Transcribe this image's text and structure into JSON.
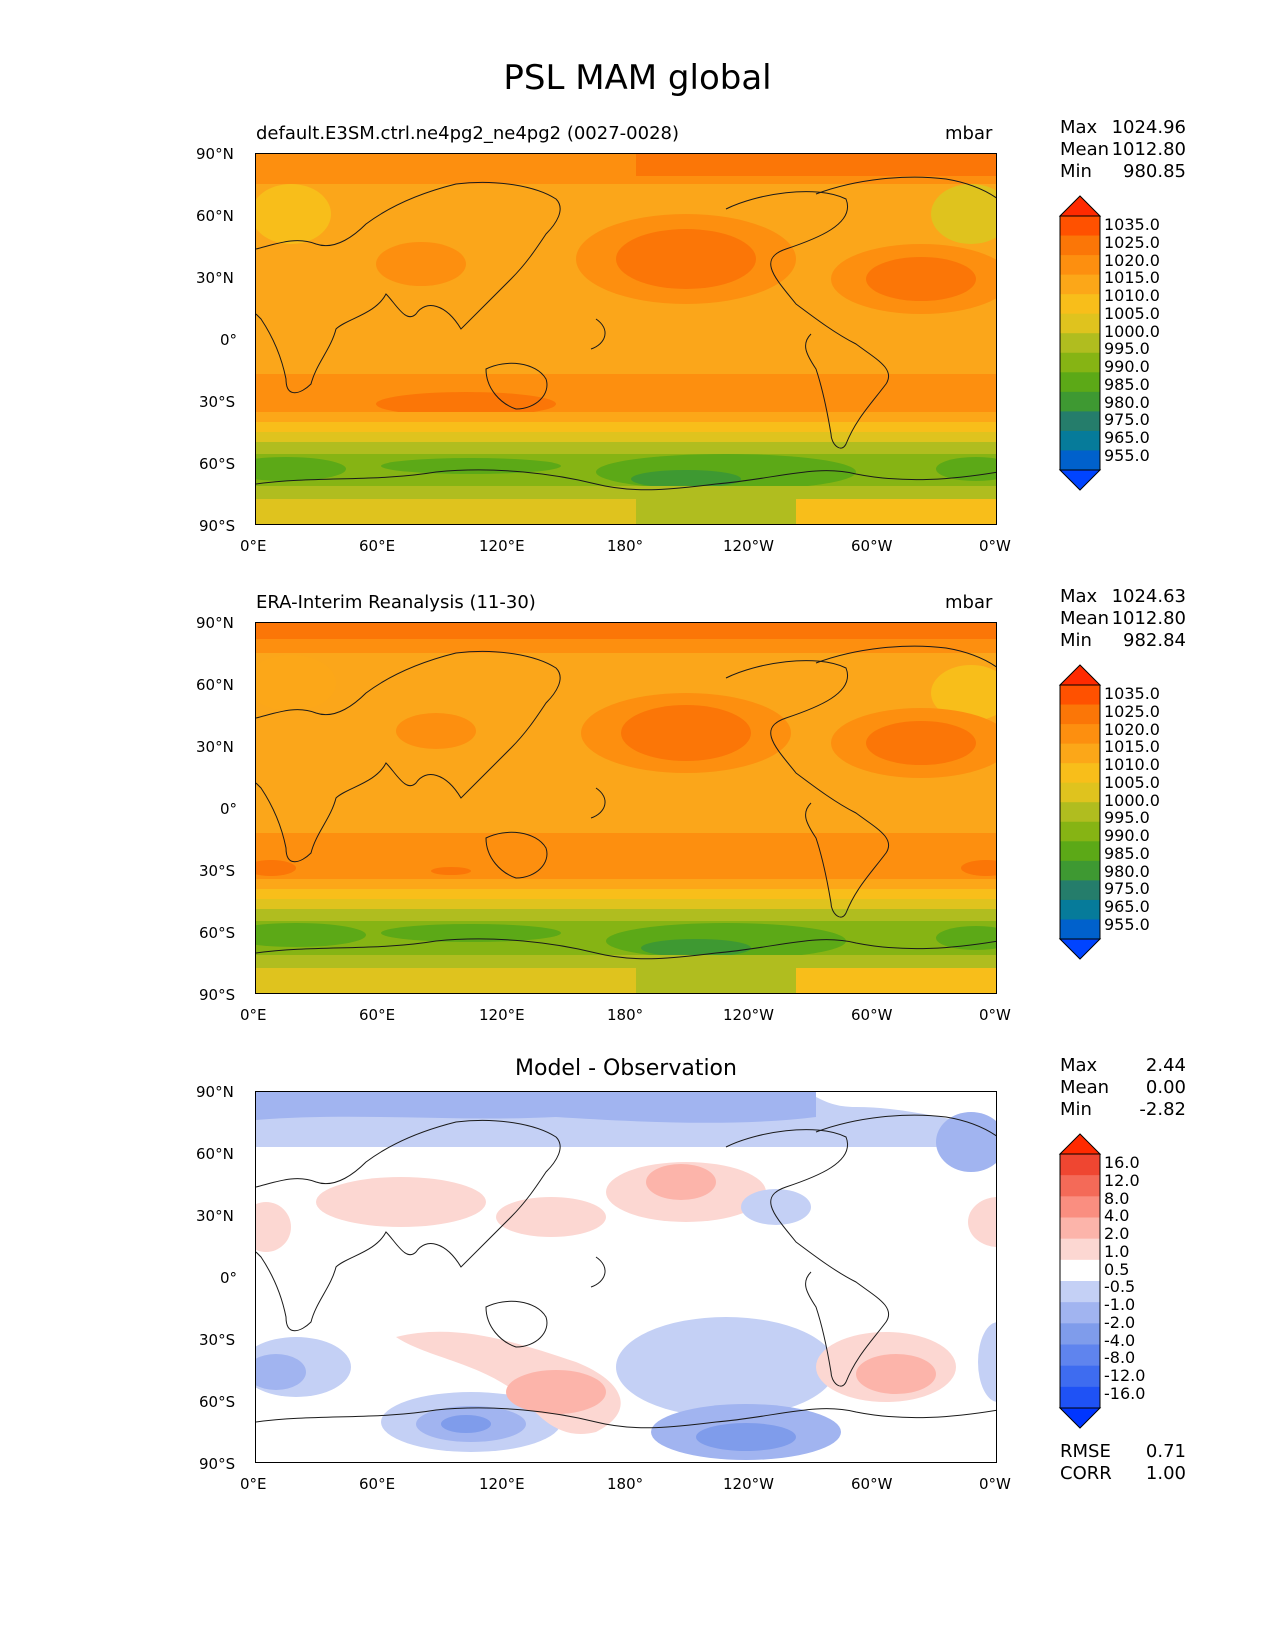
{
  "figure": {
    "title": "PSL MAM global"
  },
  "colors": {
    "model_palette": [
      "#0044ff",
      "#0061cc",
      "#067b9a",
      "#257d6b",
      "#3e9932",
      "#5ca917",
      "#86b414",
      "#b0bd1f",
      "#dfc31e",
      "#f8be1a",
      "#fca718",
      "#fd8f0f",
      "#fb7607",
      "#ff5100",
      "#ff2a00"
    ],
    "diff_palette": [
      "#0036ff",
      "#1f52f5",
      "#3e6cf0",
      "#5f84ee",
      "#7f9ceb",
      "#a1b4f0",
      "#c4d0f5",
      "#ffffff",
      "#fcd7d2",
      "#fcb4aa",
      "#fa8e80",
      "#f46a58",
      "#ef4631",
      "#ff2a00"
    ],
    "map_bg": "#fba61a",
    "coast": "#1a1a1a"
  },
  "axes": {
    "lat_ticks": [
      "90°N",
      "60°N",
      "30°N",
      "0°",
      "30°S",
      "60°S",
      "90°S"
    ],
    "lon_ticks": [
      "0°E",
      "60°E",
      "120°E",
      "180°",
      "120°W",
      "60°W",
      "0°W"
    ]
  },
  "panels": [
    {
      "title": "default.E3SM.ctrl.ne4pg2_ne4pg2 (0027-0028)",
      "units": "mbar",
      "stats": [
        {
          "label": "Max",
          "value": "1024.96"
        },
        {
          "label": "Mean",
          "value": "1012.80"
        },
        {
          "label": "Min",
          "value": "980.85"
        }
      ],
      "colorbar": [
        "1035.0",
        "1025.0",
        "1020.0",
        "1015.0",
        "1010.0",
        "1005.0",
        "1000.0",
        "995.0",
        "990.0",
        "985.0",
        "980.0",
        "975.0",
        "965.0",
        "955.0"
      ]
    },
    {
      "title": "ERA-Interim Reanalysis (11-30)",
      "units": "mbar",
      "stats": [
        {
          "label": "Max",
          "value": "1024.63"
        },
        {
          "label": "Mean",
          "value": "1012.80"
        },
        {
          "label": "Min",
          "value": "982.84"
        }
      ],
      "colorbar": [
        "1035.0",
        "1025.0",
        "1020.0",
        "1015.0",
        "1010.0",
        "1005.0",
        "1000.0",
        "995.0",
        "990.0",
        "985.0",
        "980.0",
        "975.0",
        "965.0",
        "955.0"
      ]
    },
    {
      "title": "Model - Observation",
      "stats": [
        {
          "label": "Max",
          "value": "2.44"
        },
        {
          "label": "Mean",
          "value": "0.00"
        },
        {
          "label": "Min",
          "value": "-2.82"
        }
      ],
      "colorbar": [
        "16.0",
        "12.0",
        "8.0",
        "4.0",
        "2.0",
        "1.0",
        "0.5",
        "-0.5",
        "-1.0",
        "-2.0",
        "-4.0",
        "-8.0",
        "-12.0",
        "-16.0"
      ],
      "metrics": [
        {
          "label": "RMSE",
          "value": "0.71"
        },
        {
          "label": "CORR",
          "value": "1.00"
        }
      ]
    }
  ]
}
